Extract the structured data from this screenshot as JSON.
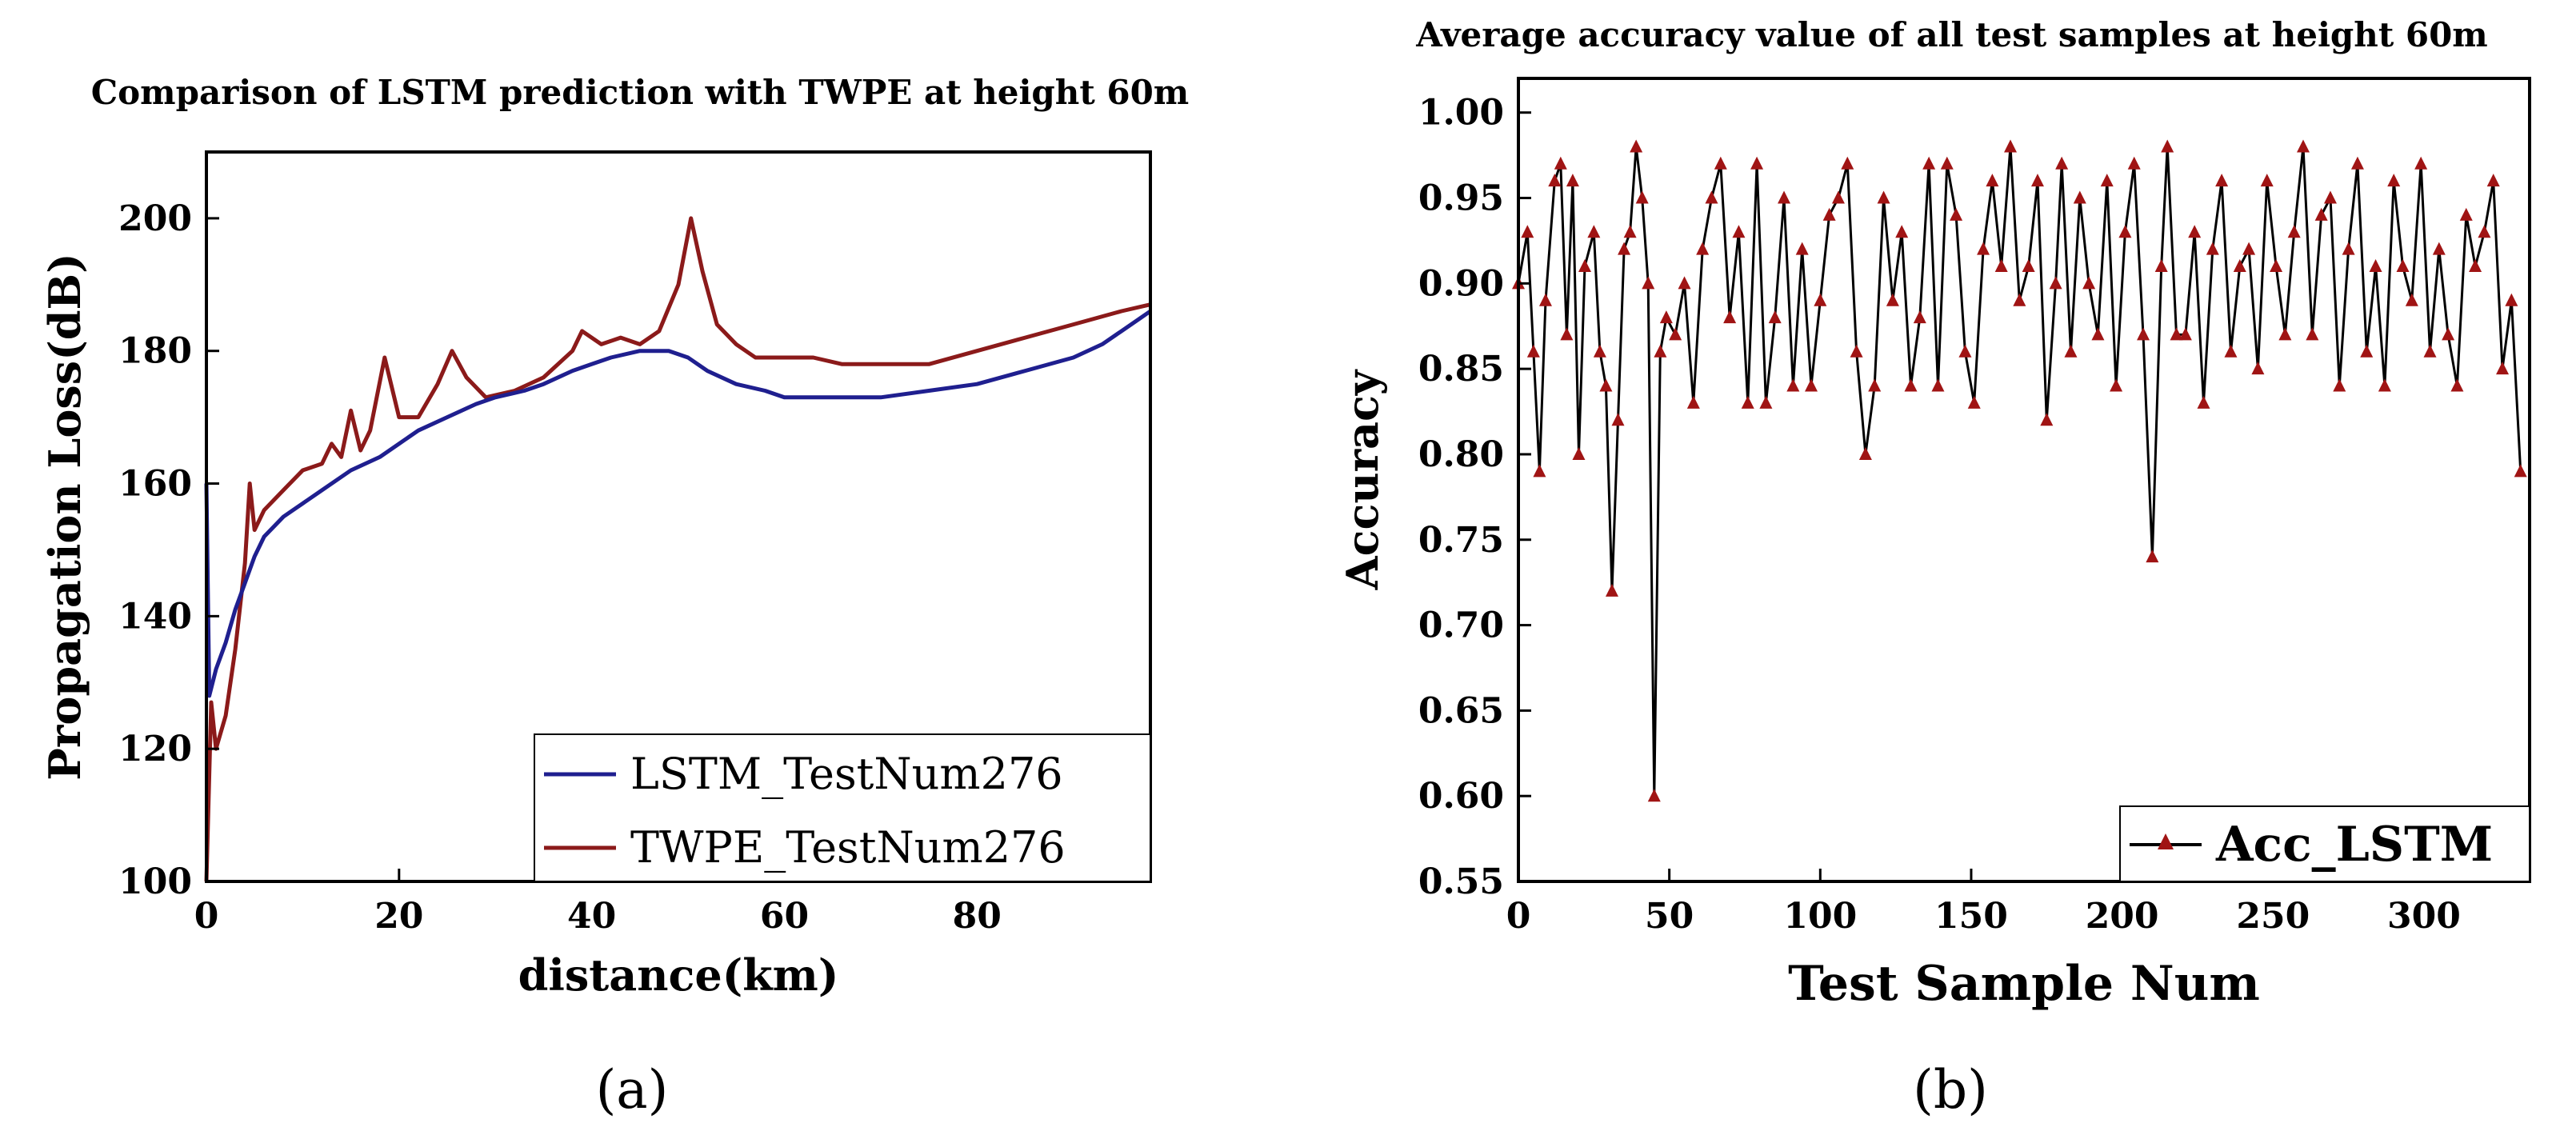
{
  "colors": {
    "lstm": "#1f1f8f",
    "twpe": "#8b1a1a",
    "acc_line": "#000000",
    "acc_marker": "#a01414",
    "axis": "#000000"
  },
  "panels": {
    "a_label": "(a)",
    "b_label": "(b)"
  },
  "chart_data": [
    {
      "type": "line",
      "title": "Comparison of LSTM prediction with TWPE at height 60m",
      "xlabel": "distance(km)",
      "ylabel": "Propagation Loss(dB)",
      "xlim": [
        0,
        98
      ],
      "ylim": [
        100,
        210
      ],
      "xticks": [
        "0",
        "20",
        "40",
        "60",
        "80"
      ],
      "xtick_values": [
        0,
        20,
        40,
        60,
        80
      ],
      "yticks": [
        "100",
        "120",
        "140",
        "160",
        "180",
        "200"
      ],
      "ytick_values": [
        100,
        120,
        140,
        160,
        180,
        200
      ],
      "legend_position": "bottom-right",
      "series": [
        {
          "name": "LSTM_TestNum276",
          "color": "#1f1f8f",
          "x": [
            0,
            0.3,
            1,
            2,
            3,
            4,
            5,
            6,
            8,
            10,
            12,
            15,
            18,
            20,
            22,
            25,
            28,
            30,
            33,
            35,
            38,
            40,
            42,
            45,
            48,
            50,
            52,
            55,
            58,
            60,
            63,
            66,
            70,
            75,
            80,
            85,
            90,
            93,
            95,
            97,
            98
          ],
          "values": [
            160,
            128,
            132,
            136,
            141,
            145,
            149,
            152,
            155,
            157,
            159,
            162,
            164,
            166,
            168,
            170,
            172,
            173,
            174,
            175,
            177,
            178,
            179,
            180,
            180,
            179,
            177,
            175,
            174,
            173,
            173,
            173,
            173,
            174,
            175,
            177,
            179,
            181,
            183,
            185,
            186
          ]
        },
        {
          "name": "TWPE_TestNum276",
          "color": "#8b1a1a",
          "x": [
            0,
            0.5,
            1,
            2,
            3,
            4,
            4.5,
            5,
            6,
            8,
            10,
            12,
            13,
            14,
            15,
            16,
            17,
            18.5,
            20,
            22,
            24,
            25.5,
            27,
            29,
            32,
            35,
            38,
            39,
            41,
            43,
            45,
            47,
            49,
            50.3,
            51.5,
            53,
            55,
            57,
            60,
            63,
            66,
            70,
            75,
            80,
            85,
            90,
            95,
            98
          ],
          "values": [
            100,
            127,
            120,
            125,
            135,
            148,
            160,
            153,
            156,
            159,
            162,
            163,
            166,
            164,
            171,
            165,
            168,
            179,
            170,
            170,
            175,
            180,
            176,
            173,
            174,
            176,
            180,
            183,
            181,
            182,
            181,
            183,
            190,
            200,
            192,
            184,
            181,
            179,
            179,
            179,
            178,
            178,
            178,
            180,
            182,
            184,
            186,
            187
          ]
        }
      ]
    },
    {
      "type": "line",
      "title": "Average accuracy value of all test samples at height 60m",
      "xlabel": "Test Sample Num",
      "ylabel": "Accuracy",
      "xlim": [
        0,
        335
      ],
      "ylim": [
        0.55,
        1.02
      ],
      "xticks": [
        "0",
        "50",
        "100",
        "150",
        "200",
        "250",
        "300"
      ],
      "xtick_values": [
        0,
        50,
        100,
        150,
        200,
        250,
        300
      ],
      "yticks": [
        "0.55",
        "0.60",
        "0.65",
        "0.70",
        "0.75",
        "0.80",
        "0.85",
        "0.90",
        "0.95",
        "1.00"
      ],
      "ytick_values": [
        0.55,
        0.6,
        0.65,
        0.7,
        0.75,
        0.8,
        0.85,
        0.9,
        0.95,
        1.0
      ],
      "legend_position": "bottom-right",
      "series": [
        {
          "name": "Acc_LSTM",
          "color": "#000000",
          "marker": "triangle",
          "x": [
            0,
            3,
            5,
            7,
            9,
            12,
            14,
            16,
            18,
            20,
            22,
            25,
            27,
            29,
            31,
            33,
            35,
            37,
            39,
            41,
            43,
            45,
            47,
            49,
            52,
            55,
            58,
            61,
            64,
            67,
            70,
            73,
            76,
            79,
            82,
            85,
            88,
            91,
            94,
            97,
            100,
            103,
            106,
            109,
            112,
            115,
            118,
            121,
            124,
            127,
            130,
            133,
            136,
            139,
            142,
            145,
            148,
            151,
            154,
            157,
            160,
            163,
            166,
            169,
            172,
            175,
            178,
            180,
            183,
            186,
            189,
            192,
            195,
            198,
            201,
            204,
            207,
            210,
            213,
            215,
            218,
            221,
            224,
            227,
            230,
            233,
            236,
            239,
            242,
            245,
            248,
            251,
            254,
            257,
            260,
            263,
            266,
            269,
            272,
            275,
            278,
            281,
            284,
            287,
            290,
            293,
            296,
            299,
            302,
            305,
            308,
            311,
            314,
            317,
            320,
            323,
            326,
            329,
            332
          ],
          "values": [
            0.9,
            0.93,
            0.86,
            0.79,
            0.89,
            0.96,
            0.97,
            0.87,
            0.96,
            0.8,
            0.91,
            0.93,
            0.86,
            0.84,
            0.72,
            0.82,
            0.92,
            0.93,
            0.98,
            0.95,
            0.9,
            0.6,
            0.86,
            0.88,
            0.87,
            0.9,
            0.83,
            0.92,
            0.95,
            0.97,
            0.88,
            0.93,
            0.83,
            0.97,
            0.83,
            0.88,
            0.95,
            0.84,
            0.92,
            0.84,
            0.89,
            0.94,
            0.95,
            0.97,
            0.86,
            0.8,
            0.84,
            0.95,
            0.89,
            0.93,
            0.84,
            0.88,
            0.97,
            0.84,
            0.97,
            0.94,
            0.86,
            0.83,
            0.92,
            0.96,
            0.91,
            0.98,
            0.89,
            0.91,
            0.96,
            0.82,
            0.9,
            0.97,
            0.86,
            0.95,
            0.9,
            0.87,
            0.96,
            0.84,
            0.93,
            0.97,
            0.87,
            0.74,
            0.91,
            0.98,
            0.87,
            0.87,
            0.93,
            0.83,
            0.92,
            0.96,
            0.86,
            0.91,
            0.92,
            0.85,
            0.96,
            0.91,
            0.87,
            0.93,
            0.98,
            0.87,
            0.94,
            0.95,
            0.84,
            0.92,
            0.97,
            0.86,
            0.91,
            0.84,
            0.96,
            0.91,
            0.89,
            0.97,
            0.86,
            0.92,
            0.87,
            0.84,
            0.94,
            0.91,
            0.93,
            0.96,
            0.85,
            0.89,
            0.79
          ]
        }
      ]
    }
  ]
}
